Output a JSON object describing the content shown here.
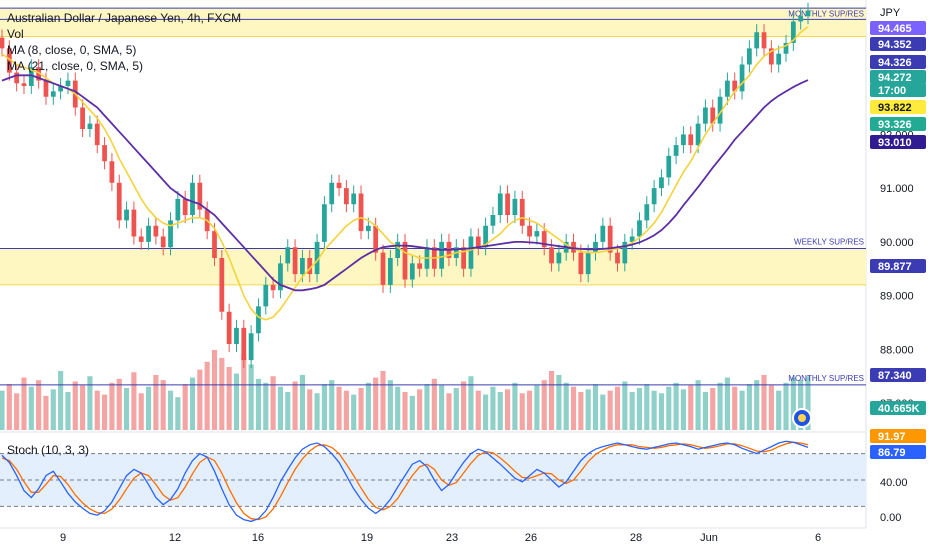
{
  "legend": {
    "title": "Australian Dollar / Japanese Yen, 4h, FXCM",
    "vol": "Vol",
    "ma1": "MA (8, close, 0, SMA, 5)",
    "ma2": "MA (21, close, 0, SMA, 5)",
    "stoch": "Stoch (10, 3, 3)"
  },
  "currency": "JPY",
  "annotations": [
    "MONTHLY SUP/RES",
    "WEEKLY SUP/RES",
    "MONTHLY SUP/RES"
  ],
  "badges": [
    {
      "text": "94.465",
      "bg": "#7b61ff",
      "fg": "#ffffff"
    },
    {
      "text": "94.352",
      "bg": "#3b3bb3",
      "fg": "#ffffff"
    },
    {
      "text": "94.326",
      "bg": "#3b3bb3",
      "fg": "#ffffff"
    },
    {
      "text": "94.272",
      "bg": "#26a69a",
      "fg": "#ffffff"
    },
    {
      "text": "17:00",
      "bg": "#26a69a",
      "fg": "#ffffff"
    },
    {
      "text": "93.822",
      "bg": "#ffeb3b",
      "fg": "#131722"
    },
    {
      "text": "93.326",
      "bg": "#22ab94",
      "fg": "#ffffff"
    },
    {
      "text": "93.010",
      "bg": "#311b92",
      "fg": "#ffffff"
    },
    {
      "text": "89.877",
      "bg": "#3b3bb3",
      "fg": "#ffffff"
    },
    {
      "text": "87.340",
      "bg": "#3b3bb3",
      "fg": "#ffffff"
    },
    {
      "text": "40.665K",
      "bg": "#26a69a",
      "fg": "#ffffff"
    },
    {
      "text": "91.97",
      "bg": "#ff9800",
      "fg": "#ffffff"
    },
    {
      "text": "86.79",
      "bg": "#2962ff",
      "fg": "#ffffff"
    }
  ],
  "colors": {
    "up": "#26a69a",
    "down": "#ef5350",
    "vol_up": "#8fd0c8",
    "vol_down": "#f4a4a2",
    "ma_fast": "#f5d33a",
    "ma_slow": "#5b2ea6",
    "level_line": "#3b3bb3",
    "zone": "#fff7c2",
    "zone_border": "#f3d64e",
    "stoch_k": "#2962ff",
    "stoch_d": "#ff6d00",
    "stoch_band": "#e3effd"
  },
  "chart_data": [
    {
      "type": "candlestick",
      "title": "Australian Dollar / Japanese Yen, 4h, FXCM",
      "y_unit": "JPY",
      "ylim": [
        86.5,
        94.5
      ],
      "y_ticks": [
        "92.000",
        "91.000",
        "90.000",
        "89.000",
        "88.000",
        "87.000"
      ],
      "x_ticks": [
        "9",
        "12",
        "16",
        "19",
        "23",
        "26",
        "28",
        "Jun",
        "6"
      ],
      "levels": [
        {
          "name": "MONTHLY SUP/RES",
          "value": 94.35
        },
        {
          "name": "MONTHLY SUP/RES",
          "value": 94.14
        },
        {
          "name": "WEEKLY SUP/RES",
          "value": 89.877
        },
        {
          "name": "MONTHLY SUP/RES",
          "value": 87.34
        }
      ],
      "zones": [
        {
          "from": 93.82,
          "to": 94.35
        },
        {
          "from": 89.2,
          "to": 89.88
        }
      ],
      "close": [
        93.6,
        93.15,
        92.95,
        92.9,
        93.25,
        93.0,
        92.7,
        92.8,
        92.9,
        93.0,
        92.5,
        92.1,
        92.2,
        91.8,
        91.5,
        91.1,
        90.4,
        90.6,
        90.1,
        90.0,
        90.3,
        90.1,
        89.9,
        90.4,
        90.8,
        90.5,
        91.1,
        90.6,
        90.2,
        89.7,
        88.7,
        88.1,
        88.4,
        87.8,
        88.3,
        88.8,
        89.2,
        89.1,
        89.6,
        89.9,
        89.4,
        89.7,
        89.4,
        90.0,
        90.7,
        91.1,
        91.0,
        90.7,
        90.9,
        90.2,
        90.3,
        89.8,
        89.2,
        89.7,
        90.0,
        89.3,
        89.6,
        89.5,
        89.9,
        89.5,
        90.0,
        89.7,
        89.9,
        89.5,
        90.1,
        89.9,
        90.3,
        90.5,
        90.9,
        90.5,
        90.8,
        90.3,
        90.1,
        90.2,
        89.9,
        89.6,
        89.8,
        90.0,
        89.8,
        89.4,
        89.8,
        90.0,
        90.3,
        89.8,
        89.6,
        90.0,
        90.1,
        90.4,
        90.7,
        91.0,
        91.2,
        91.6,
        91.8,
        92.0,
        91.8,
        92.2,
        92.5,
        92.2,
        92.7,
        93.0,
        92.8,
        93.3,
        93.6,
        93.9,
        93.6,
        93.3,
        93.5,
        93.7,
        94.1,
        94.2,
        94.3
      ],
      "ma8": [
        93.5,
        93.4,
        93.3,
        93.25,
        93.2,
        93.15,
        93.05,
        92.95,
        92.9,
        92.85,
        92.75,
        92.6,
        92.45,
        92.3,
        92.1,
        91.85,
        91.55,
        91.3,
        91.05,
        90.8,
        90.6,
        90.45,
        90.35,
        90.3,
        90.35,
        90.4,
        90.45,
        90.45,
        90.4,
        90.25,
        90.0,
        89.7,
        89.35,
        89.0,
        88.75,
        88.6,
        88.55,
        88.6,
        88.75,
        88.95,
        89.15,
        89.35,
        89.5,
        89.65,
        89.85,
        90.0,
        90.15,
        90.3,
        90.4,
        90.45,
        90.4,
        90.3,
        90.15,
        90.0,
        89.9,
        89.8,
        89.75,
        89.7,
        89.7,
        89.7,
        89.72,
        89.75,
        89.8,
        89.82,
        89.85,
        89.9,
        89.95,
        90.05,
        90.15,
        90.3,
        90.4,
        90.45,
        90.4,
        90.35,
        90.25,
        90.15,
        90.05,
        89.95,
        89.88,
        89.82,
        89.8,
        89.8,
        89.82,
        89.85,
        89.88,
        89.92,
        89.98,
        90.08,
        90.2,
        90.35,
        90.55,
        90.8,
        91.05,
        91.3,
        91.5,
        91.75,
        92.0,
        92.2,
        92.4,
        92.6,
        92.8,
        92.95,
        93.1,
        93.3,
        93.45,
        93.55,
        93.6,
        93.65,
        93.75,
        93.9,
        94.0
      ],
      "ma21": [
        93.0,
        93.05,
        93.1,
        93.1,
        93.1,
        93.05,
        93.0,
        92.95,
        92.9,
        92.85,
        92.8,
        92.7,
        92.6,
        92.5,
        92.35,
        92.2,
        92.05,
        91.9,
        91.75,
        91.6,
        91.45,
        91.3,
        91.15,
        91.0,
        90.9,
        90.8,
        90.75,
        90.7,
        90.6,
        90.5,
        90.35,
        90.2,
        90.05,
        89.9,
        89.75,
        89.6,
        89.45,
        89.3,
        89.2,
        89.15,
        89.1,
        89.1,
        89.12,
        89.15,
        89.2,
        89.3,
        89.4,
        89.5,
        89.6,
        89.7,
        89.78,
        89.85,
        89.9,
        89.92,
        89.93,
        89.93,
        89.92,
        89.9,
        89.88,
        89.86,
        89.85,
        89.85,
        89.86,
        89.87,
        89.88,
        89.9,
        89.92,
        89.94,
        89.96,
        89.98,
        90.0,
        90.0,
        89.99,
        89.98,
        89.96,
        89.94,
        89.92,
        89.9,
        89.88,
        89.87,
        89.86,
        89.86,
        89.87,
        89.88,
        89.9,
        89.92,
        89.95,
        89.99,
        90.05,
        90.12,
        90.22,
        90.35,
        90.5,
        90.68,
        90.85,
        91.02,
        91.2,
        91.38,
        91.55,
        91.72,
        91.9,
        92.05,
        92.2,
        92.35,
        92.5,
        92.62,
        92.72,
        92.8,
        92.88,
        92.95,
        93.01
      ]
    },
    {
      "type": "bar",
      "title": "Vol",
      "last_value": "40.665K",
      "values": [
        30,
        35,
        28,
        40,
        33,
        38,
        26,
        31,
        45,
        29,
        37,
        34,
        41,
        30,
        27,
        36,
        39,
        32,
        44,
        28,
        33,
        42,
        38,
        30,
        25,
        35,
        40,
        46,
        52,
        61,
        55,
        48,
        43,
        58,
        50,
        39,
        36,
        41,
        33,
        29,
        37,
        42,
        31,
        28,
        35,
        38,
        33,
        30,
        27,
        32,
        36,
        40,
        45,
        38,
        33,
        29,
        26,
        31,
        35,
        39,
        34,
        28,
        32,
        37,
        41,
        30,
        27,
        33,
        29,
        31,
        36,
        28,
        30,
        34,
        38,
        45,
        42,
        36,
        33,
        29,
        31,
        35,
        27,
        30,
        33,
        37,
        29,
        32,
        35,
        30,
        28,
        33,
        36,
        31,
        34,
        38,
        29,
        32,
        36,
        40,
        33,
        30,
        35,
        38,
        42,
        34,
        30,
        36,
        40,
        38,
        41
      ]
    },
    {
      "type": "line",
      "title": "Stoch (10, 3, 3)",
      "ylim": [
        0,
        100
      ],
      "y_ticks": [
        "40.00",
        "0.00"
      ],
      "bands": [
        20,
        50,
        80
      ],
      "series": [
        {
          "name": "%K",
          "values": [
            78,
            70,
            55,
            38,
            30,
            40,
            55,
            60,
            48,
            35,
            25,
            18,
            12,
            10,
            15,
            25,
            40,
            55,
            62,
            58,
            45,
            30,
            22,
            28,
            40,
            58,
            72,
            80,
            76,
            60,
            40,
            22,
            10,
            5,
            3,
            6,
            15,
            30,
            48,
            62,
            75,
            85,
            90,
            92,
            88,
            80,
            70,
            55,
            40,
            28,
            18,
            12,
            18,
            28,
            42,
            55,
            68,
            72,
            65,
            50,
            38,
            45,
            58,
            70,
            80,
            85,
            82,
            75,
            68,
            60,
            52,
            48,
            55,
            62,
            58,
            50,
            42,
            48,
            60,
            72,
            80,
            85,
            88,
            90,
            92,
            90,
            88,
            86,
            85,
            87,
            89,
            91,
            92,
            90,
            88,
            85,
            87,
            89,
            91,
            92,
            90,
            86,
            83,
            80,
            84,
            88,
            92,
            94,
            93,
            90,
            87
          ]
        },
        {
          "name": "%D",
          "values": [
            75,
            72,
            62,
            48,
            36,
            36,
            45,
            55,
            54,
            45,
            33,
            24,
            17,
            13,
            12,
            17,
            27,
            40,
            52,
            58,
            55,
            45,
            33,
            27,
            30,
            42,
            57,
            70,
            76,
            72,
            58,
            40,
            24,
            12,
            6,
            5,
            8,
            17,
            31,
            47,
            62,
            74,
            83,
            89,
            90,
            87,
            80,
            68,
            55,
            41,
            28,
            19,
            16,
            20,
            29,
            42,
            55,
            65,
            68,
            62,
            50,
            44,
            47,
            58,
            69,
            78,
            82,
            81,
            75,
            68,
            60,
            53,
            52,
            55,
            58,
            57,
            50,
            46,
            50,
            60,
            71,
            79,
            84,
            88,
            90,
            90,
            90,
            88,
            87,
            86,
            87,
            89,
            90,
            91,
            90,
            88,
            86,
            87,
            89,
            91,
            91,
            89,
            86,
            83,
            82,
            84,
            88,
            91,
            93,
            92,
            90
          ]
        }
      ]
    }
  ]
}
